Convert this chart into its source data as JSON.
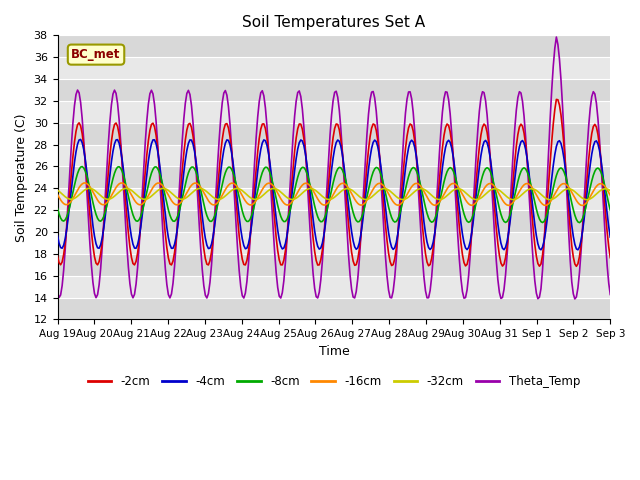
{
  "title": "Soil Temperatures Set A",
  "xlabel": "Time",
  "ylabel": "Soil Temperature (C)",
  "ylim": [
    12,
    38
  ],
  "annotation": "BC_met",
  "series_colors": {
    "-2cm": "#dd0000",
    "-4cm": "#0000cc",
    "-8cm": "#00aa00",
    "-16cm": "#ff8800",
    "-32cm": "#cccc00",
    "Theta_Temp": "#9900aa"
  },
  "tick_labels": [
    "Aug 19",
    "Aug 20",
    "Aug 21",
    "Aug 22",
    "Aug 23",
    "Aug 24",
    "Aug 25",
    "Aug 26",
    "Aug 27",
    "Aug 28",
    "Aug 29",
    "Aug 30",
    "Aug 31",
    "Sep 1",
    "Sep 2",
    "Sep 3"
  ],
  "tick_positions": [
    0,
    1,
    2,
    3,
    4,
    5,
    6,
    7,
    8,
    9,
    10,
    11,
    12,
    13,
    14,
    15
  ],
  "ytick_labels": [
    "12",
    "14",
    "16",
    "18",
    "20",
    "22",
    "24",
    "26",
    "28",
    "30",
    "32",
    "34",
    "36",
    "38"
  ],
  "ytick_positions": [
    12,
    14,
    16,
    18,
    20,
    22,
    24,
    26,
    28,
    30,
    32,
    34,
    36,
    38
  ]
}
